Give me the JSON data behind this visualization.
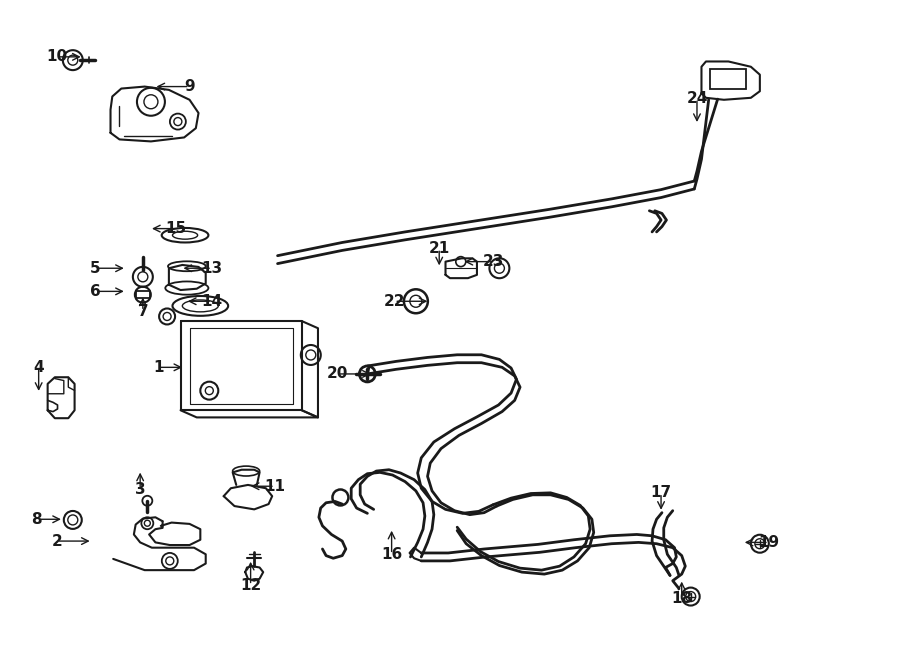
{
  "background_color": "#ffffff",
  "line_color": "#1a1a1a",
  "figsize": [
    9.0,
    6.62
  ],
  "dpi": 100,
  "label_positions": {
    "1": [
      0.175,
      0.555,
      0.03,
      0.0
    ],
    "2": [
      0.062,
      0.818,
      0.04,
      0.0
    ],
    "3": [
      0.155,
      0.74,
      0.0,
      -0.03
    ],
    "4": [
      0.042,
      0.555,
      0.0,
      0.04
    ],
    "5": [
      0.105,
      0.405,
      0.035,
      0.0
    ],
    "6": [
      0.105,
      0.44,
      0.035,
      0.0
    ],
    "7": [
      0.158,
      0.47,
      0.0,
      -0.025
    ],
    "8": [
      0.04,
      0.785,
      0.03,
      0.0
    ],
    "9": [
      0.21,
      0.13,
      -0.04,
      0.0
    ],
    "10": [
      0.062,
      0.085,
      0.03,
      0.0
    ],
    "11": [
      0.305,
      0.735,
      -0.03,
      0.0
    ],
    "12": [
      0.278,
      0.885,
      0.0,
      -0.04
    ],
    "13": [
      0.235,
      0.405,
      -0.035,
      0.0
    ],
    "14": [
      0.235,
      0.455,
      -0.03,
      0.0
    ],
    "15": [
      0.195,
      0.345,
      -0.03,
      0.0
    ],
    "16": [
      0.435,
      0.838,
      0.0,
      -0.04
    ],
    "17": [
      0.735,
      0.745,
      0.0,
      0.03
    ],
    "18": [
      0.758,
      0.905,
      0.0,
      -0.03
    ],
    "19": [
      0.855,
      0.82,
      -0.03,
      0.0
    ],
    "20": [
      0.375,
      0.565,
      0.04,
      0.0
    ],
    "21": [
      0.488,
      0.375,
      0.0,
      0.03
    ],
    "22": [
      0.438,
      0.455,
      0.04,
      0.0
    ],
    "23": [
      0.548,
      0.395,
      -0.035,
      0.0
    ],
    "24": [
      0.775,
      0.148,
      0.0,
      0.04
    ]
  }
}
